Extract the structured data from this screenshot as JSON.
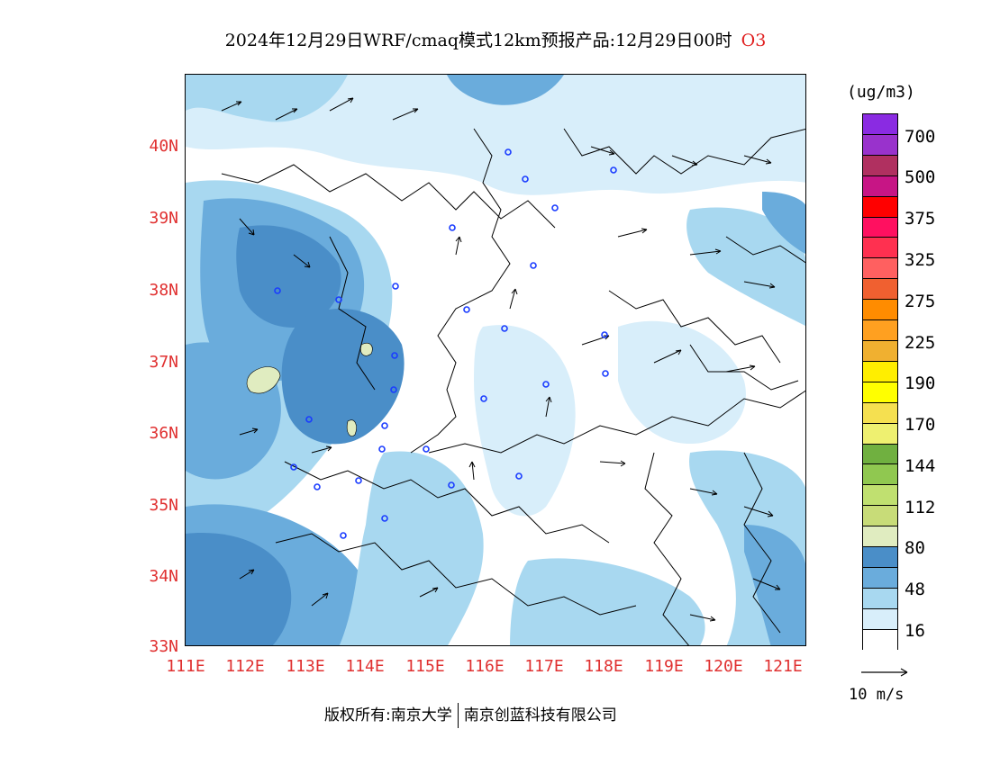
{
  "title": {
    "text": "2024年12月29日WRF/cmaq模式12km预报产品:12月29日00时",
    "species": "O3"
  },
  "axes": {
    "lat_labels": [
      "40N",
      "39N",
      "38N",
      "37N",
      "36N",
      "35N",
      "34N",
      "33N"
    ],
    "lon_labels": [
      "111E",
      "112E",
      "113E",
      "114E",
      "115E",
      "116E",
      "117E",
      "118E",
      "119E",
      "120E",
      "121E"
    ]
  },
  "colorbar": {
    "unit": "(ug/m3)",
    "colors": [
      "#8a2be2",
      "#9932cc",
      "#b03060",
      "#c71585",
      "#ff0000",
      "#ff1060",
      "#ff3050",
      "#ff6060",
      "#f06030",
      "#ff8c00",
      "#ffa020",
      "#f0b030",
      "#ffee00",
      "#ffff00",
      "#f5e050",
      "#eef070",
      "#70b040",
      "#90c850",
      "#c0e070",
      "#c8dc78",
      "#e0ecc0",
      "#4a8ec8",
      "#6aacdc",
      "#a8d8f0",
      "#d8eefa",
      "#ffffff"
    ],
    "labels": [
      "700",
      "500",
      "375",
      "325",
      "275",
      "225",
      "190",
      "170",
      "144",
      "112",
      "80",
      "48",
      "16"
    ]
  },
  "vector_reference": {
    "label": "10 m/s"
  },
  "copyright": {
    "left": "版权所有:南京大学",
    "right": "南京创蓝科技有限公司"
  },
  "colors": {
    "axis_label": "#e03030",
    "title_species": "#e02020",
    "station_marker": "#1a3cff"
  }
}
